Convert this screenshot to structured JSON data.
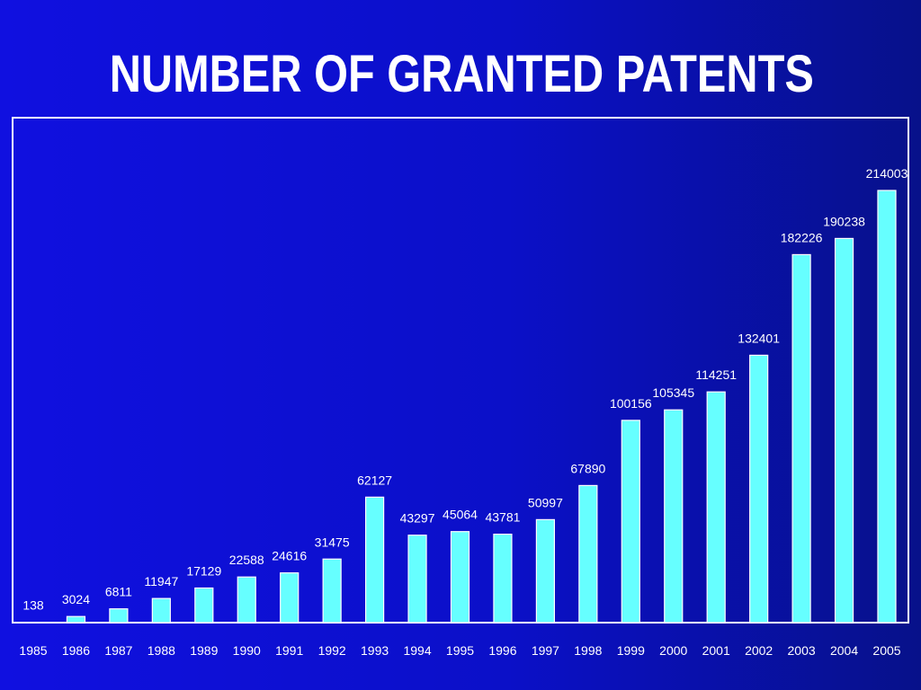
{
  "chart_data": {
    "type": "bar",
    "title": "NUMBER OF GRANTED PATENTS",
    "categories": [
      "1985",
      "1986",
      "1987",
      "1988",
      "1989",
      "1990",
      "1991",
      "1992",
      "1993",
      "1994",
      "1995",
      "1996",
      "1997",
      "1998",
      "1999",
      "2000",
      "2001",
      "2002",
      "2003",
      "2004",
      "2005"
    ],
    "values": [
      138,
      3024,
      6811,
      11947,
      17129,
      22588,
      24616,
      31475,
      62127,
      43297,
      45064,
      43781,
      50997,
      67890,
      100156,
      105345,
      114251,
      132401,
      182226,
      190238,
      214003
    ],
    "data_labels": [
      "138",
      "3024",
      "6811",
      "11947",
      "17129",
      "22588",
      "24616",
      "31475",
      "62127",
      "43297",
      "45064",
      "43781",
      "50997",
      "67890",
      "100156",
      "105345",
      "114251",
      "132401",
      "182226",
      "190238",
      "214003"
    ],
    "xlabel": "",
    "ylabel": "",
    "ylim": [
      0,
      214003
    ],
    "grid": false,
    "legend": "none",
    "colors": {
      "bar_fill": "#66ffff",
      "bar_stroke": "#ffffff",
      "text": "#ffffff",
      "background_left": "#1010e0",
      "background_right": "#07118a"
    }
  }
}
